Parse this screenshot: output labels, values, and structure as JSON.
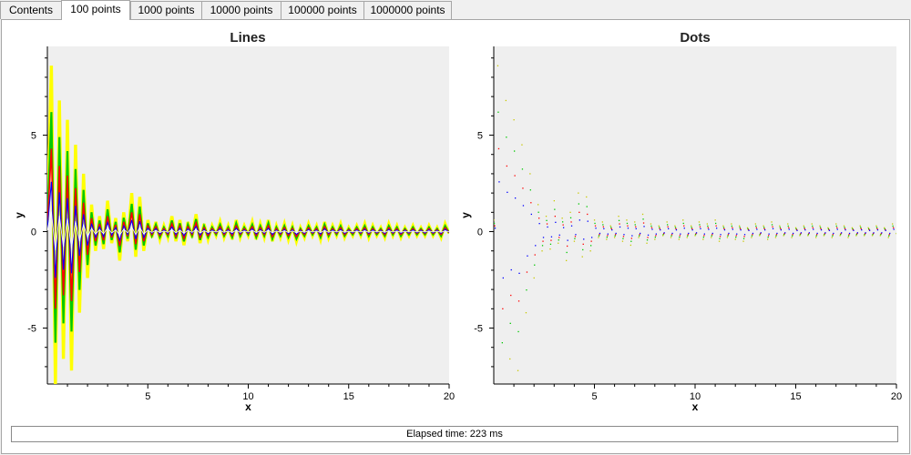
{
  "tabs": [
    "Contents",
    "100 points",
    "1000 points",
    "10000 points",
    "100000 points",
    "1000000 points"
  ],
  "active_tab": "100 points",
  "status": {
    "text": "Elapsed time: 223 ms"
  },
  "colors": {
    "plot_bg": "#efefef",
    "series": [
      "#ffff00",
      "#00c800",
      "#ff0000",
      "#0000ff",
      "#ffffff"
    ]
  },
  "chart_data": [
    {
      "type": "line",
      "title": "Lines",
      "xlabel": "x",
      "ylabel": "y",
      "xlim": [
        0,
        20
      ],
      "ylim": [
        -7.9,
        9.6
      ],
      "xticks": [
        5,
        10,
        15,
        20
      ],
      "yticks": [
        -5,
        0,
        5
      ],
      "grid": false,
      "series_scales": [
        1.0,
        0.72,
        0.5,
        0.3,
        0.12
      ],
      "x": [
        0.0,
        0.2,
        0.4,
        0.6,
        0.8,
        1.0,
        1.2,
        1.4,
        1.6,
        1.8,
        2.0,
        2.2,
        2.4,
        2.6,
        2.8,
        3.0,
        3.2,
        3.4,
        3.6,
        3.8,
        4.0,
        4.2,
        4.4,
        4.6,
        4.8,
        5.0,
        5.2,
        5.4,
        5.6,
        5.8,
        6.0,
        6.2,
        6.4,
        6.6,
        6.8,
        7.0,
        7.2,
        7.4,
        7.6,
        7.8,
        8.0,
        8.2,
        8.4,
        8.6,
        8.8,
        9.0,
        9.2,
        9.4,
        9.6,
        9.8,
        10.0,
        10.2,
        10.4,
        10.6,
        10.8,
        11.0,
        11.2,
        11.4,
        11.6,
        11.8,
        12.0,
        12.2,
        12.4,
        12.6,
        12.8,
        13.0,
        13.2,
        13.4,
        13.6,
        13.8,
        14.0,
        14.2,
        14.4,
        14.6,
        14.8,
        15.0,
        15.2,
        15.4,
        15.6,
        15.8,
        16.0,
        16.2,
        16.4,
        16.6,
        16.8,
        17.0,
        17.2,
        17.4,
        17.6,
        17.8,
        18.0,
        18.2,
        18.4,
        18.6,
        18.8,
        19.0,
        19.2,
        19.4,
        19.6,
        19.8,
        20.0
      ],
      "envelope": [
        0.6,
        8.6,
        -8.0,
        6.8,
        -6.6,
        5.8,
        -7.2,
        4.5,
        -4.2,
        3.0,
        -2.4,
        1.4,
        -1.0,
        0.8,
        -0.9,
        1.6,
        -0.6,
        0.7,
        -1.5,
        1.0,
        -0.5,
        2.0,
        -1.3,
        1.8,
        -1.0,
        0.6,
        -0.3,
        0.5,
        -0.4,
        0.3,
        -0.3,
        0.8,
        -0.5,
        0.6,
        -0.7,
        0.5,
        -0.3,
        0.9,
        -0.6,
        0.4,
        -0.4,
        0.3,
        -0.2,
        0.5,
        -0.3,
        0.3,
        -0.4,
        0.6,
        -0.3,
        0.3,
        -0.2,
        0.5,
        -0.4,
        0.4,
        -0.3,
        0.6,
        -0.5,
        0.3,
        -0.3,
        0.4,
        -0.4,
        0.3,
        -0.5,
        0.2,
        -0.3,
        0.4,
        -0.2,
        0.3,
        -0.4,
        0.5,
        -0.3,
        0.3,
        -0.2,
        0.4,
        -0.3,
        0.2,
        -0.2,
        0.3,
        -0.2,
        0.4,
        -0.3,
        0.3,
        -0.2,
        0.2,
        -0.3,
        0.4,
        -0.2,
        0.3,
        -0.3,
        0.2,
        -0.2,
        0.3,
        -0.2,
        0.2,
        -0.2,
        0.3,
        -0.2,
        0.2,
        -0.3,
        0.4,
        -0.1
      ]
    },
    {
      "type": "scatter",
      "title": "Dots",
      "xlabel": "x",
      "ylabel": "y",
      "xlim": [
        0,
        20
      ],
      "ylim": [
        -7.9,
        9.6
      ],
      "xticks": [
        5,
        10,
        15,
        20
      ],
      "yticks": [
        -5,
        0,
        5
      ],
      "grid": false,
      "series_scales": [
        1.0,
        0.72,
        0.5,
        0.3,
        0.12
      ],
      "x": [
        0.0,
        0.2,
        0.4,
        0.6,
        0.8,
        1.0,
        1.2,
        1.4,
        1.6,
        1.8,
        2.0,
        2.2,
        2.4,
        2.6,
        2.8,
        3.0,
        3.2,
        3.4,
        3.6,
        3.8,
        4.0,
        4.2,
        4.4,
        4.6,
        4.8,
        5.0,
        5.2,
        5.4,
        5.6,
        5.8,
        6.0,
        6.2,
        6.4,
        6.6,
        6.8,
        7.0,
        7.2,
        7.4,
        7.6,
        7.8,
        8.0,
        8.2,
        8.4,
        8.6,
        8.8,
        9.0,
        9.2,
        9.4,
        9.6,
        9.8,
        10.0,
        10.2,
        10.4,
        10.6,
        10.8,
        11.0,
        11.2,
        11.4,
        11.6,
        11.8,
        12.0,
        12.2,
        12.4,
        12.6,
        12.8,
        13.0,
        13.2,
        13.4,
        13.6,
        13.8,
        14.0,
        14.2,
        14.4,
        14.6,
        14.8,
        15.0,
        15.2,
        15.4,
        15.6,
        15.8,
        16.0,
        16.2,
        16.4,
        16.6,
        16.8,
        17.0,
        17.2,
        17.4,
        17.6,
        17.8,
        18.0,
        18.2,
        18.4,
        18.6,
        18.8,
        19.0,
        19.2,
        19.4,
        19.6,
        19.8,
        20.0
      ],
      "envelope": [
        0.6,
        8.6,
        -8.0,
        6.8,
        -6.6,
        5.8,
        -7.2,
        4.5,
        -4.2,
        3.0,
        -2.4,
        1.4,
        -1.0,
        0.8,
        -0.9,
        1.6,
        -0.6,
        0.7,
        -1.5,
        1.0,
        -0.5,
        2.0,
        -1.3,
        1.8,
        -1.0,
        0.6,
        -0.3,
        0.5,
        -0.4,
        0.3,
        -0.3,
        0.8,
        -0.5,
        0.6,
        -0.7,
        0.5,
        -0.3,
        0.9,
        -0.6,
        0.4,
        -0.4,
        0.3,
        -0.2,
        0.5,
        -0.3,
        0.3,
        -0.4,
        0.6,
        -0.3,
        0.3,
        -0.2,
        0.5,
        -0.4,
        0.4,
        -0.3,
        0.6,
        -0.5,
        0.3,
        -0.3,
        0.4,
        -0.4,
        0.3,
        -0.5,
        0.2,
        -0.3,
        0.4,
        -0.2,
        0.3,
        -0.4,
        0.5,
        -0.3,
        0.3,
        -0.2,
        0.4,
        -0.3,
        0.2,
        -0.2,
        0.3,
        -0.2,
        0.4,
        -0.3,
        0.3,
        -0.2,
        0.2,
        -0.3,
        0.4,
        -0.2,
        0.3,
        -0.3,
        0.2,
        -0.2,
        0.3,
        -0.2,
        0.2,
        -0.2,
        0.3,
        -0.2,
        0.2,
        -0.3,
        0.4,
        -0.1
      ]
    }
  ]
}
